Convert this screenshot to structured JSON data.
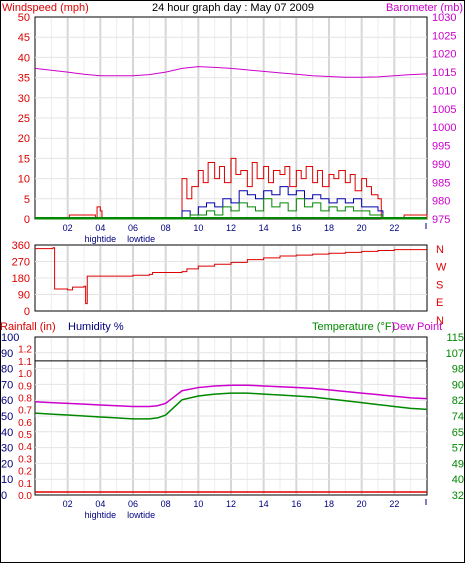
{
  "chart_data": [
    {
      "type": "line",
      "panel": "wind-barometer",
      "title": "24 hour graph day : May 07 2009",
      "ylabel_left": "Windspeed (mph)",
      "ylabel_right": "Barometer (mb)",
      "yticks_left": [
        "0",
        "5",
        "10",
        "15",
        "20",
        "25",
        "30",
        "35",
        "40",
        "45",
        "50"
      ],
      "yticks_right": [
        "975",
        "980",
        "985",
        "990",
        "995",
        "1000",
        "1005",
        "1010",
        "1015",
        "1020",
        "1025",
        "1030"
      ],
      "ylim_left": [
        0,
        50
      ],
      "ylim_right": [
        975,
        1030
      ],
      "xlim": [
        0,
        24
      ],
      "xticks": [
        "02",
        "04",
        "06",
        "08",
        "10",
        "12",
        "14",
        "16",
        "18",
        "20",
        "22"
      ],
      "tide_labels": [
        {
          "x": 4,
          "text": "hightide"
        },
        {
          "x": 6.5,
          "text": "lowtide"
        }
      ],
      "grid": true,
      "colors": {
        "gust": "#dd0000",
        "avg": "#008800",
        "speed": "#0000aa",
        "barometer": "#cc00cc"
      },
      "series": [
        {
          "name": "barometer",
          "x": [
            0,
            1,
            2,
            3,
            4,
            5,
            6,
            7,
            8,
            9,
            10,
            11,
            12,
            13,
            14,
            15,
            16,
            17,
            18,
            19,
            20,
            21,
            22,
            23,
            24
          ],
          "values": [
            1016,
            1015.5,
            1015,
            1014.4,
            1014,
            1014,
            1014,
            1014.3,
            1015,
            1016,
            1016.5,
            1016.3,
            1016,
            1015.6,
            1015.2,
            1014.8,
            1014.4,
            1014,
            1013.8,
            1013.6,
            1013.6,
            1013.7,
            1014,
            1014.3,
            1014.5
          ]
        },
        {
          "name": "gust",
          "x": [
            0,
            2,
            2.1,
            3.7,
            3.8,
            4.0,
            4.1,
            8.5,
            9,
            9.3,
            9.6,
            10,
            10.3,
            10.6,
            11,
            11.3,
            11.6,
            12,
            12.3,
            12.6,
            13,
            13.3,
            13.6,
            14,
            14.3,
            14.6,
            15,
            15.3,
            15.6,
            16,
            16.3,
            16.6,
            17,
            17.3,
            17.6,
            18,
            18.3,
            18.6,
            19,
            19.3,
            19.6,
            20,
            20.3,
            20.6,
            21,
            21.2,
            21.5,
            22.5,
            22.6,
            24
          ],
          "values": [
            0,
            0,
            1,
            0,
            3,
            2,
            0,
            0,
            10,
            5,
            8,
            12,
            9,
            14,
            10,
            13,
            9,
            15,
            11,
            12,
            8,
            14,
            10,
            13,
            9,
            12,
            11,
            13,
            8,
            12,
            10,
            13,
            9,
            12,
            8,
            11,
            10,
            12,
            9,
            11,
            7,
            10,
            8,
            6,
            5,
            0,
            0,
            0,
            1,
            0
          ]
        },
        {
          "name": "speed",
          "x": [
            0,
            8.5,
            9,
            9.5,
            10,
            10.5,
            11,
            11.5,
            12,
            12.5,
            13,
            13.5,
            14,
            14.5,
            15,
            15.5,
            16,
            16.5,
            17,
            17.5,
            18,
            18.5,
            19,
            19.5,
            20,
            20.5,
            21,
            21.3,
            24
          ],
          "values": [
            0,
            0,
            2,
            1,
            3,
            4,
            3,
            5,
            4,
            7,
            6,
            5,
            7,
            6,
            8,
            6,
            7,
            5,
            6,
            5,
            4,
            5,
            4,
            5,
            3,
            3,
            2,
            0,
            0
          ]
        },
        {
          "name": "avg",
          "x": [
            0,
            8.5,
            9,
            9.5,
            10,
            10.5,
            11,
            11.5,
            12,
            12.5,
            13,
            13.5,
            14,
            14.5,
            15,
            15.5,
            16,
            16.5,
            17,
            17.5,
            18,
            18.5,
            19,
            19.5,
            20,
            20.5,
            21,
            21.3,
            24
          ],
          "values": [
            0,
            0,
            0,
            1,
            1,
            2,
            1,
            3,
            2,
            4,
            3,
            2,
            5,
            3,
            4,
            2,
            5,
            3,
            4,
            2,
            3,
            2,
            3,
            2,
            2,
            1,
            1,
            0,
            0
          ]
        }
      ]
    },
    {
      "type": "line",
      "panel": "wind-direction",
      "yticks_left": [
        "0",
        "90",
        "180",
        "270",
        "360"
      ],
      "compass_labels": [
        "N",
        "W",
        "S",
        "E",
        "N"
      ],
      "ylim": [
        0,
        360
      ],
      "xlim": [
        0,
        24
      ],
      "grid": true,
      "series": [
        {
          "name": "direction",
          "x": [
            0,
            1,
            1.1,
            1.2,
            2,
            2.3,
            3.0,
            3.1,
            3.2,
            3.5,
            6,
            7,
            7.2,
            9,
            9.3,
            10,
            11,
            12,
            13,
            14,
            15,
            16,
            17,
            18,
            19,
            20,
            21,
            22,
            23,
            24
          ],
          "values": [
            340,
            340,
            345,
            120,
            115,
            130,
            135,
            40,
            190,
            190,
            195,
            200,
            210,
            215,
            230,
            245,
            255,
            265,
            280,
            290,
            300,
            305,
            310,
            315,
            320,
            325,
            330,
            335,
            335,
            335
          ]
        }
      ]
    },
    {
      "type": "line",
      "panel": "temp-humidity",
      "ylabel_rain": "Rainfall (in)",
      "ylabel_humidity": "Humidity %",
      "ylabel_temp": "Temperature (°F)",
      "ylabel_dew": "Dew Point",
      "yticks_humidity": [
        "0",
        "10",
        "20",
        "30",
        "40",
        "50",
        "60",
        "70",
        "80",
        "90",
        "100"
      ],
      "yticks_rain": [
        "0.0",
        "0.1",
        "0.2",
        "0.3",
        "0.4",
        "0.5",
        "0.6",
        "0.7",
        "0.8",
        "0.9",
        "1.0",
        "1.1",
        "1.2"
      ],
      "yticks_temp": [
        "32",
        "40",
        "49",
        "57",
        "65",
        "74",
        "82",
        "90",
        "98",
        "107",
        "115"
      ],
      "ylim_humidity": [
        0,
        100
      ],
      "ylim_temp": [
        32,
        115
      ],
      "xlim": [
        0,
        24
      ],
      "xticks": [
        "02",
        "04",
        "06",
        "08",
        "10",
        "12",
        "14",
        "16",
        "18",
        "20",
        "22"
      ],
      "tide_labels": [
        {
          "x": 4,
          "text": "hightide"
        },
        {
          "x": 6.5,
          "text": "lowtide"
        }
      ],
      "grid": true,
      "colors": {
        "temperature": "#008800",
        "humidity": "#cc00cc",
        "rainfall": "#dd0000",
        "reference": "#000000"
      },
      "series": [
        {
          "name": "temperature",
          "x": [
            0,
            1,
            2,
            3,
            4,
            5,
            6,
            7,
            7.5,
            8,
            8.5,
            9,
            10,
            11,
            12,
            13,
            14,
            15,
            16,
            17,
            18,
            19,
            20,
            21,
            22,
            23,
            24
          ],
          "values": [
            75,
            74.5,
            74,
            73.5,
            73,
            72.5,
            72,
            72,
            72.5,
            74,
            78,
            82,
            84,
            85,
            85.5,
            85.5,
            85,
            84.5,
            84,
            83.5,
            82.5,
            81.5,
            80.5,
            79.5,
            78.5,
            77.5,
            77
          ]
        },
        {
          "name": "humidity",
          "x": [
            0,
            1,
            2,
            3,
            4,
            5,
            6,
            7,
            7.5,
            8,
            8.5,
            9,
            10,
            11,
            12,
            13,
            14,
            15,
            16,
            17,
            18,
            19,
            20,
            21,
            22,
            23,
            24
          ],
          "values": [
            59,
            58.5,
            58,
            57.5,
            57,
            56.5,
            56,
            56,
            56.5,
            58,
            62,
            66,
            68,
            69,
            69.5,
            69.5,
            69,
            68.5,
            68,
            67.5,
            66.5,
            65.5,
            64.5,
            63.5,
            62.5,
            61.5,
            61
          ]
        },
        {
          "name": "rainfall",
          "x": [
            0,
            24
          ],
          "values": [
            0,
            0
          ]
        },
        {
          "name": "reference",
          "x": [
            0,
            24
          ],
          "values": [
            1.1,
            1.1
          ]
        }
      ]
    }
  ]
}
